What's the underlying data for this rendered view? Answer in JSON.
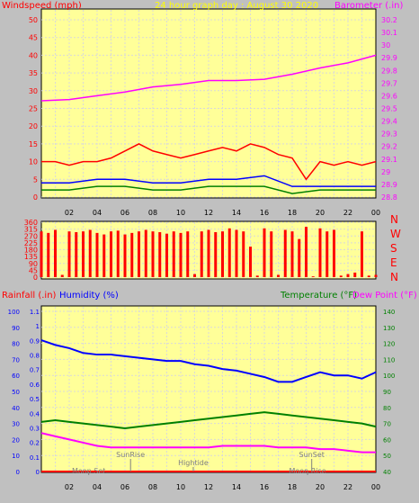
{
  "colors": {
    "background": "#c0c0c0",
    "plot_bg": "#ffff99",
    "grid": "#d9d9d9",
    "red": "#ff0000",
    "blue": "#0000ff",
    "green": "#008000",
    "magenta": "#ff00ff",
    "yellow": "#ffff00",
    "black": "#000000"
  },
  "chart_data": [
    {
      "type": "line",
      "title": "24 hour graph day : August 30 2020",
      "ylabel_left": "Windspeed (mph)",
      "ylabel_right": "Barometer (.in)",
      "x_ticks": [
        "02",
        "04",
        "06",
        "08",
        "10",
        "12",
        "14",
        "16",
        "18",
        "20",
        "22",
        "00"
      ],
      "y_left_ticks": [
        "0",
        "5",
        "10",
        "15",
        "20",
        "25",
        "30",
        "35",
        "40",
        "45",
        "50"
      ],
      "y_left_range": [
        0,
        50
      ],
      "y_right_ticks": [
        "28.8",
        "28.9",
        "29",
        "29.1",
        "29.2",
        "29.3",
        "29.4",
        "29.5",
        "29.6",
        "29.7",
        "29.8",
        "29.9",
        "30",
        "30.1",
        "30.2"
      ],
      "y_right_range": [
        28.8,
        30.2
      ],
      "grid": true,
      "series": [
        {
          "name": "Barometer",
          "axis": "right",
          "color": "#ff00ff",
          "x": [
            0,
            2,
            4,
            6,
            8,
            10,
            12,
            14,
            16,
            18,
            20,
            22,
            24
          ],
          "y": [
            29.56,
            29.57,
            29.6,
            29.63,
            29.67,
            29.69,
            29.72,
            29.72,
            29.73,
            29.77,
            29.82,
            29.86,
            29.92
          ]
        },
        {
          "name": "Wind gust",
          "axis": "left",
          "color": "#ff0000",
          "x": [
            0,
            1,
            2,
            3,
            4,
            5,
            6,
            7,
            8,
            9,
            10,
            11,
            12,
            13,
            14,
            15,
            16,
            17,
            18,
            19,
            20,
            21,
            22,
            23,
            24
          ],
          "y": [
            10,
            10,
            9,
            10,
            10,
            11,
            13,
            15,
            13,
            12,
            11,
            12,
            13,
            14,
            13,
            15,
            14,
            12,
            11,
            5,
            10,
            9,
            10,
            9,
            10
          ]
        },
        {
          "name": "Wind speed",
          "axis": "left",
          "color": "#0000ff",
          "x": [
            0,
            2,
            4,
            6,
            8,
            10,
            12,
            14,
            16,
            18,
            20,
            22,
            24
          ],
          "y": [
            4,
            4,
            5,
            5,
            4,
            4,
            5,
            5,
            6,
            3,
            3,
            3,
            3
          ]
        },
        {
          "name": "Wind average",
          "axis": "left",
          "color": "#008000",
          "x": [
            0,
            2,
            4,
            6,
            8,
            10,
            12,
            14,
            16,
            18,
            20,
            22,
            24
          ],
          "y": [
            2,
            2,
            3,
            3,
            2,
            2,
            3,
            3,
            3,
            1,
            2,
            2,
            2
          ]
        }
      ]
    },
    {
      "type": "scatter",
      "ylabel_right": [
        "N",
        "W",
        "S",
        "E",
        "N"
      ],
      "x_ticks": [
        "02",
        "04",
        "06",
        "08",
        "10",
        "12",
        "14",
        "16",
        "18",
        "20",
        "22",
        "00"
      ],
      "y_left_ticks": [
        "0",
        "45",
        "90",
        "135",
        "180",
        "225",
        "270",
        "315",
        "360"
      ],
      "y_range": [
        0,
        360
      ],
      "grid": true,
      "series": [
        {
          "name": "Wind direction",
          "color": "#ff0000",
          "x": [
            0,
            0.5,
            1,
            1.5,
            2,
            2.5,
            3,
            3.5,
            4,
            4.5,
            5,
            5.5,
            6,
            6.5,
            7,
            7.5,
            8,
            8.5,
            9,
            9.5,
            10,
            10.5,
            11,
            11.5,
            12,
            12.5,
            13,
            13.5,
            14,
            14.5,
            15,
            15.5,
            16,
            16.5,
            17,
            17.5,
            18,
            18.5,
            19,
            19.5,
            20,
            20.5,
            21,
            21.5,
            22,
            22.5,
            23,
            23.5,
            24
          ],
          "y": [
            300,
            290,
            310,
            15,
            300,
            295,
            300,
            310,
            290,
            280,
            300,
            305,
            280,
            290,
            300,
            310,
            300,
            295,
            285,
            300,
            290,
            300,
            20,
            300,
            310,
            295,
            300,
            320,
            310,
            300,
            200,
            10,
            320,
            300,
            15,
            310,
            300,
            250,
            330,
            5,
            320,
            300,
            310,
            10,
            20,
            30,
            300,
            10,
            15
          ]
        }
      ]
    },
    {
      "type": "line",
      "ylabel_left_1": "Rainfall (.in)",
      "ylabel_left_2": "Humidity (%)",
      "ylabel_right_1": "Temperature (°F)",
      "ylabel_right_2": "Dew Point (°F)",
      "x_ticks": [
        "02",
        "04",
        "06",
        "08",
        "10",
        "12",
        "14",
        "16",
        "18",
        "20",
        "22",
        "00"
      ],
      "humidity_ticks": [
        "0",
        "10",
        "20",
        "30",
        "40",
        "50",
        "60",
        "70",
        "80",
        "90",
        "100"
      ],
      "rain_ticks": [
        "0",
        "0.1",
        "0.2",
        "0.3",
        "0.4",
        "0.5",
        "0.6",
        "0.7",
        "0.8",
        "0.9",
        "1",
        "1.1"
      ],
      "temp_ticks": [
        "40",
        "50",
        "60",
        "70",
        "80",
        "90",
        "100",
        "110",
        "120",
        "130",
        "140"
      ],
      "humidity_range": [
        0,
        100
      ],
      "rain_range": [
        0,
        1.1
      ],
      "temp_range": [
        40,
        140
      ],
      "grid": true,
      "series": [
        {
          "name": "Humidity",
          "axis": "humidity",
          "color": "#0000ff",
          "x": [
            0,
            1,
            2,
            3,
            4,
            5,
            6,
            7,
            8,
            9,
            10,
            11,
            12,
            13,
            14,
            15,
            16,
            17,
            18,
            19,
            20,
            21,
            22,
            23,
            24
          ],
          "y": [
            82,
            79,
            77,
            74,
            73,
            73,
            72,
            71,
            70,
            69,
            69,
            67,
            66,
            64,
            63,
            61,
            59,
            56,
            56,
            59,
            62,
            60,
            60,
            58,
            62
          ]
        },
        {
          "name": "Temperature",
          "axis": "temp",
          "color": "#008000",
          "x": [
            0,
            1,
            2,
            3,
            4,
            5,
            6,
            7,
            8,
            9,
            10,
            11,
            12,
            13,
            14,
            15,
            16,
            17,
            18,
            19,
            20,
            21,
            22,
            23,
            24
          ],
          "y": [
            71,
            72,
            71,
            70,
            69,
            68,
            67,
            68,
            69,
            70,
            71,
            72,
            73,
            74,
            75,
            76,
            77,
            76,
            75,
            74,
            73,
            72,
            71,
            70,
            68
          ]
        },
        {
          "name": "Dew Point",
          "axis": "temp",
          "color": "#ff00ff",
          "x": [
            0,
            1,
            2,
            3,
            4,
            5,
            6,
            7,
            8,
            9,
            10,
            11,
            12,
            13,
            14,
            15,
            16,
            17,
            18,
            19,
            20,
            21,
            22,
            23,
            24
          ],
          "y": [
            64,
            62,
            60,
            58,
            56,
            55,
            55,
            55,
            55,
            55,
            55,
            55,
            55,
            56,
            56,
            56,
            56,
            55,
            55,
            55,
            54,
            54,
            53,
            52,
            52
          ]
        },
        {
          "name": "Rainfall",
          "axis": "rain",
          "color": "#ff0000",
          "x": [
            0,
            24
          ],
          "y": [
            0,
            0
          ]
        }
      ],
      "annotations": [
        {
          "text": "SunRise",
          "x": 6.4,
          "level": "high"
        },
        {
          "text": "SunSet",
          "x": 19.4,
          "level": "high"
        },
        {
          "text": "Hightide",
          "x": 10.9,
          "level": "mid"
        },
        {
          "text": "Moon Set",
          "x": 3.4,
          "level": "low"
        },
        {
          "text": "Moon Rise",
          "x": 19.1,
          "level": "low"
        }
      ]
    }
  ]
}
